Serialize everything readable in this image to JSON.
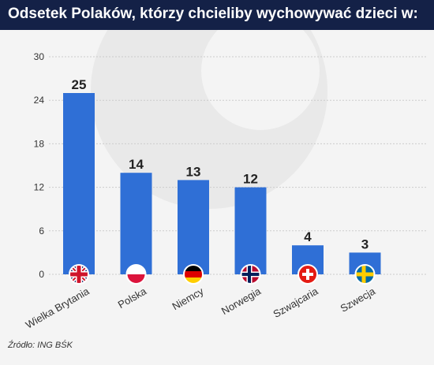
{
  "header": {
    "title": "Odsetek Polaków, którzy chcieliby wychowywać dzieci w:"
  },
  "footer": {
    "source": "Źródło: ING BŚK"
  },
  "colors": {
    "header_bg": "#142147",
    "bar": "#2f6fd6",
    "grid": "#cccccc"
  },
  "chart_data": {
    "type": "bar",
    "title": "Odsetek Polaków, którzy chcieliby wychowywać dzieci w:",
    "categories": [
      "Wielka Brytania",
      "Polska",
      "Niemcy",
      "Norwegia",
      "Szwajcaria",
      "Szwecja"
    ],
    "values": [
      25,
      14,
      13,
      12,
      4,
      3
    ],
    "flag_icons": [
      "uk-flag-icon",
      "poland-flag-icon",
      "germany-flag-icon",
      "norway-flag-icon",
      "switzerland-flag-icon",
      "sweden-flag-icon"
    ],
    "yticks": [
      0,
      6,
      12,
      18,
      24,
      30
    ],
    "ylim": [
      0,
      30
    ],
    "grid": true,
    "xlabel": "",
    "ylabel": ""
  }
}
